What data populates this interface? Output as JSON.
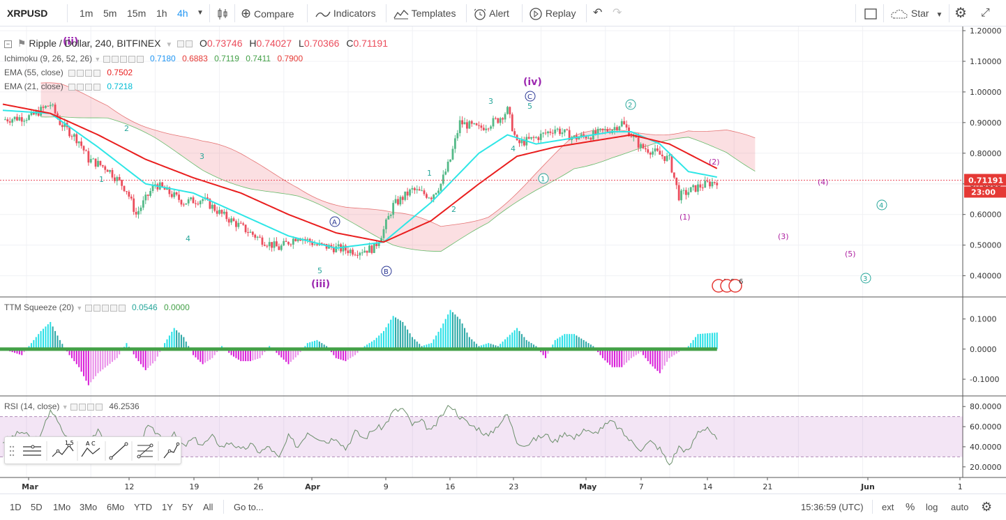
{
  "toolbar": {
    "symbol": "XRPUSD",
    "intervals": [
      "1m",
      "5m",
      "15m",
      "1h",
      "4h"
    ],
    "active_interval": "4h",
    "compare": "Compare",
    "indicators": "Indicators",
    "templates": "Templates",
    "alert": "Alert",
    "replay": "Replay",
    "star": "Star"
  },
  "legend": {
    "title": "Ripple / Dollar, 240, BITFINEX",
    "o": "O",
    "o_val": "0.73746",
    "h": "H",
    "h_val": "0.74027",
    "l": "L",
    "l_val": "0.70366",
    "c": "C",
    "c_val": "0.71191",
    "ichimoku_label": "Ichimoku (9, 26, 52, 26)",
    "ichimoku_vals": [
      "0.7180",
      "0.6883",
      "0.7119",
      "0.7411",
      "0.7900"
    ],
    "ema55_label": "EMA (55, close)",
    "ema55_val": "0.7502",
    "ema21_label": "EMA (21, close)",
    "ema21_val": "0.7218",
    "ttm_label": "TTM Squeeze (20)",
    "ttm_val1": "0.0546",
    "ttm_val2": "0.0000",
    "rsi_label": "RSI (14, close)",
    "rsi_val": "46.2536"
  },
  "price_label": "0.71191",
  "countdown_label": "23:00",
  "colors": {
    "up": "#53b987",
    "down": "#eb4d5c",
    "ema55": "#e91e1e",
    "ema21": "#2ee6e6",
    "accent": "#2196f3",
    "wave": "#9c27b0",
    "teal": "#26a69a"
  },
  "chart_data": [
    {
      "type": "candlestick",
      "title": "Ripple / Dollar, 240, BITFINEX",
      "ylim": [
        0.35,
        1.2
      ],
      "price_ticks": [
        "1.20000",
        "1.10000",
        "1.00000",
        "0.90000",
        "0.80000",
        "0.70000",
        "0.60000",
        "0.50000",
        "0.40000"
      ],
      "last_price": 0.71191,
      "time_labels": [
        "Mar",
        "12",
        "19",
        "26",
        "Apr",
        "9",
        "16",
        "23",
        "May",
        "7",
        "14",
        "21",
        "Jun",
        "1"
      ],
      "close_path": [
        [
          0,
          0.91
        ],
        [
          3,
          0.92
        ],
        [
          5,
          0.96
        ],
        [
          6,
          0.9
        ],
        [
          8,
          0.84
        ],
        [
          9,
          0.78
        ],
        [
          11,
          0.75
        ],
        [
          13,
          0.68
        ],
        [
          14,
          0.6
        ],
        [
          15,
          0.65
        ],
        [
          16,
          0.7
        ],
        [
          17,
          0.68
        ],
        [
          19,
          0.64
        ],
        [
          21,
          0.65
        ],
        [
          23,
          0.6
        ],
        [
          25,
          0.56
        ],
        [
          27,
          0.52
        ],
        [
          29,
          0.49
        ],
        [
          31,
          0.53
        ],
        [
          33,
          0.5
        ],
        [
          35,
          0.49
        ],
        [
          37,
          0.48
        ],
        [
          39,
          0.49
        ],
        [
          40,
          0.55
        ],
        [
          41,
          0.63
        ],
        [
          43,
          0.68
        ],
        [
          45,
          0.66
        ],
        [
          46,
          0.7
        ],
        [
          47,
          0.78
        ],
        [
          48,
          0.9
        ],
        [
          50,
          0.88
        ],
        [
          52,
          0.91
        ],
        [
          53,
          0.94
        ],
        [
          54,
          0.83
        ],
        [
          56,
          0.85
        ],
        [
          58,
          0.88
        ],
        [
          60,
          0.85
        ],
        [
          62,
          0.86
        ],
        [
          64,
          0.88
        ],
        [
          65,
          0.9
        ],
        [
          67,
          0.82
        ],
        [
          68,
          0.81
        ],
        [
          70,
          0.78
        ],
        [
          71,
          0.66
        ],
        [
          73,
          0.69
        ],
        [
          75,
          0.71
        ]
      ],
      "ema21_path": [
        [
          0,
          0.94
        ],
        [
          5,
          0.93
        ],
        [
          10,
          0.82
        ],
        [
          15,
          0.7
        ],
        [
          20,
          0.67
        ],
        [
          25,
          0.6
        ],
        [
          30,
          0.53
        ],
        [
          35,
          0.49
        ],
        [
          40,
          0.51
        ],
        [
          45,
          0.64
        ],
        [
          50,
          0.8
        ],
        [
          53,
          0.86
        ],
        [
          56,
          0.83
        ],
        [
          60,
          0.85
        ],
        [
          64,
          0.87
        ],
        [
          66,
          0.87
        ],
        [
          69,
          0.83
        ],
        [
          72,
          0.74
        ],
        [
          75,
          0.722
        ]
      ],
      "ema55_path": [
        [
          0,
          0.96
        ],
        [
          5,
          0.93
        ],
        [
          10,
          0.86
        ],
        [
          15,
          0.78
        ],
        [
          20,
          0.72
        ],
        [
          25,
          0.67
        ],
        [
          30,
          0.6
        ],
        [
          35,
          0.54
        ],
        [
          40,
          0.51
        ],
        [
          45,
          0.58
        ],
        [
          50,
          0.7
        ],
        [
          54,
          0.79
        ],
        [
          58,
          0.82
        ],
        [
          62,
          0.84
        ],
        [
          66,
          0.86
        ],
        [
          70,
          0.83
        ],
        [
          75,
          0.75
        ]
      ],
      "wave_labels_primary": [
        "(ii)",
        "(iii)",
        "(iv)"
      ],
      "wave_labels_minor": [
        "1",
        "2",
        "3",
        "4",
        "5",
        "1",
        "2",
        "3",
        "4",
        "5"
      ],
      "abc_labels": [
        "A",
        "B",
        "C"
      ],
      "circle_labels": [
        "1",
        "2",
        "3",
        "4"
      ],
      "projection_labels": [
        "(1)",
        "(2)",
        "(3)",
        "(4)",
        "(5)"
      ]
    },
    {
      "type": "bar",
      "title": "TTM Squeeze (20)",
      "ylim": [
        -0.13,
        0.15
      ],
      "ticks": [
        "0.1000",
        "0.0000",
        "-0.1000"
      ],
      "envelope": [
        [
          0,
          0.0
        ],
        [
          2,
          -0.02
        ],
        [
          4,
          0.06
        ],
        [
          5,
          0.09
        ],
        [
          6,
          0.03
        ],
        [
          7,
          -0.02
        ],
        [
          8,
          -0.06
        ],
        [
          9,
          -0.12
        ],
        [
          10,
          -0.08
        ],
        [
          12,
          -0.03
        ],
        [
          13,
          0.02
        ],
        [
          14,
          -0.03
        ],
        [
          15,
          -0.07
        ],
        [
          16,
          -0.04
        ],
        [
          17,
          0.02
        ],
        [
          18,
          0.07
        ],
        [
          19,
          0.04
        ],
        [
          20,
          -0.02
        ],
        [
          21,
          -0.05
        ],
        [
          22,
          -0.03
        ],
        [
          23,
          0.01
        ],
        [
          24,
          -0.02
        ],
        [
          25,
          -0.04
        ],
        [
          26,
          -0.04
        ],
        [
          27,
          -0.03
        ],
        [
          28,
          0.01
        ],
        [
          29,
          -0.02
        ],
        [
          30,
          -0.05
        ],
        [
          31,
          -0.02
        ],
        [
          32,
          0.02
        ],
        [
          33,
          0.03
        ],
        [
          34,
          0.01
        ],
        [
          35,
          -0.03
        ],
        [
          36,
          -0.04
        ],
        [
          37,
          -0.02
        ],
        [
          38,
          0.01
        ],
        [
          39,
          0.03
        ],
        [
          40,
          0.06
        ],
        [
          41,
          0.11
        ],
        [
          42,
          0.09
        ],
        [
          43,
          0.04
        ],
        [
          44,
          0.01
        ],
        [
          45,
          0.02
        ],
        [
          46,
          0.07
        ],
        [
          47,
          0.13
        ],
        [
          48,
          0.1
        ],
        [
          49,
          0.04
        ],
        [
          50,
          0.01
        ],
        [
          51,
          0.02
        ],
        [
          52,
          0.01
        ],
        [
          53,
          0.04
        ],
        [
          54,
          0.07
        ],
        [
          55,
          0.03
        ],
        [
          56,
          0.01
        ],
        [
          57,
          -0.03
        ],
        [
          58,
          0.03
        ],
        [
          59,
          0.05
        ],
        [
          60,
          0.05
        ],
        [
          61,
          0.03
        ],
        [
          62,
          0.01
        ],
        [
          63,
          -0.03
        ],
        [
          64,
          -0.06
        ],
        [
          65,
          -0.06
        ],
        [
          66,
          -0.03
        ],
        [
          67,
          -0.01
        ],
        [
          68,
          -0.05
        ],
        [
          69,
          -0.08
        ],
        [
          70,
          -0.03
        ],
        [
          72,
          0.01
        ],
        [
          73,
          0.05
        ],
        [
          75,
          0.055
        ]
      ]
    },
    {
      "type": "line",
      "title": "RSI (14, close)",
      "ylim": [
        15,
        85
      ],
      "ticks": [
        "80.0000",
        "60.0000",
        "40.0000",
        "20.0000"
      ],
      "bands": [
        30,
        70
      ],
      "values": [
        [
          0,
          45
        ],
        [
          2,
          55
        ],
        [
          3,
          48
        ],
        [
          4,
          50
        ],
        [
          5,
          78
        ],
        [
          6,
          60
        ],
        [
          7,
          45
        ],
        [
          8,
          35
        ],
        [
          9,
          48
        ],
        [
          10,
          55
        ],
        [
          11,
          40
        ],
        [
          12,
          45
        ],
        [
          13,
          40
        ],
        [
          14,
          25
        ],
        [
          15,
          60
        ],
        [
          16,
          55
        ],
        [
          17,
          48
        ],
        [
          18,
          52
        ],
        [
          19,
          40
        ],
        [
          20,
          48
        ],
        [
          21,
          42
        ],
        [
          22,
          50
        ],
        [
          23,
          40
        ],
        [
          24,
          45
        ],
        [
          25,
          36
        ],
        [
          26,
          42
        ],
        [
          27,
          35
        ],
        [
          28,
          40
        ],
        [
          29,
          28
        ],
        [
          30,
          50
        ],
        [
          31,
          40
        ],
        [
          32,
          55
        ],
        [
          33,
          50
        ],
        [
          34,
          45
        ],
        [
          35,
          50
        ],
        [
          36,
          38
        ],
        [
          37,
          55
        ],
        [
          38,
          48
        ],
        [
          39,
          58
        ],
        [
          40,
          60
        ],
        [
          41,
          75
        ],
        [
          42,
          78
        ],
        [
          43,
          62
        ],
        [
          44,
          65
        ],
        [
          45,
          55
        ],
        [
          46,
          70
        ],
        [
          47,
          82
        ],
        [
          48,
          70
        ],
        [
          49,
          62
        ],
        [
          50,
          58
        ],
        [
          51,
          50
        ],
        [
          52,
          62
        ],
        [
          53,
          72
        ],
        [
          54,
          45
        ],
        [
          55,
          42
        ],
        [
          56,
          48
        ],
        [
          57,
          52
        ],
        [
          58,
          45
        ],
        [
          59,
          55
        ],
        [
          60,
          48
        ],
        [
          61,
          58
        ],
        [
          62,
          52
        ],
        [
          63,
          60
        ],
        [
          64,
          65
        ],
        [
          65,
          55
        ],
        [
          66,
          45
        ],
        [
          67,
          38
        ],
        [
          68,
          45
        ],
        [
          69,
          38
        ],
        [
          70,
          22
        ],
        [
          71,
          40
        ],
        [
          72,
          35
        ],
        [
          73,
          55
        ],
        [
          74,
          60
        ],
        [
          75,
          46.25
        ]
      ]
    }
  ],
  "bottombar": {
    "ranges": [
      "1D",
      "5D",
      "1Mo",
      "3Mo",
      "6Mo",
      "YTD",
      "1Y",
      "5Y",
      "All"
    ],
    "goto": "Go to...",
    "clock": "15:36:59 (UTC)",
    "ext": "ext",
    "pct": "%",
    "log": "log",
    "auto": "auto"
  },
  "badges": [
    "4",
    "8",
    "6"
  ]
}
